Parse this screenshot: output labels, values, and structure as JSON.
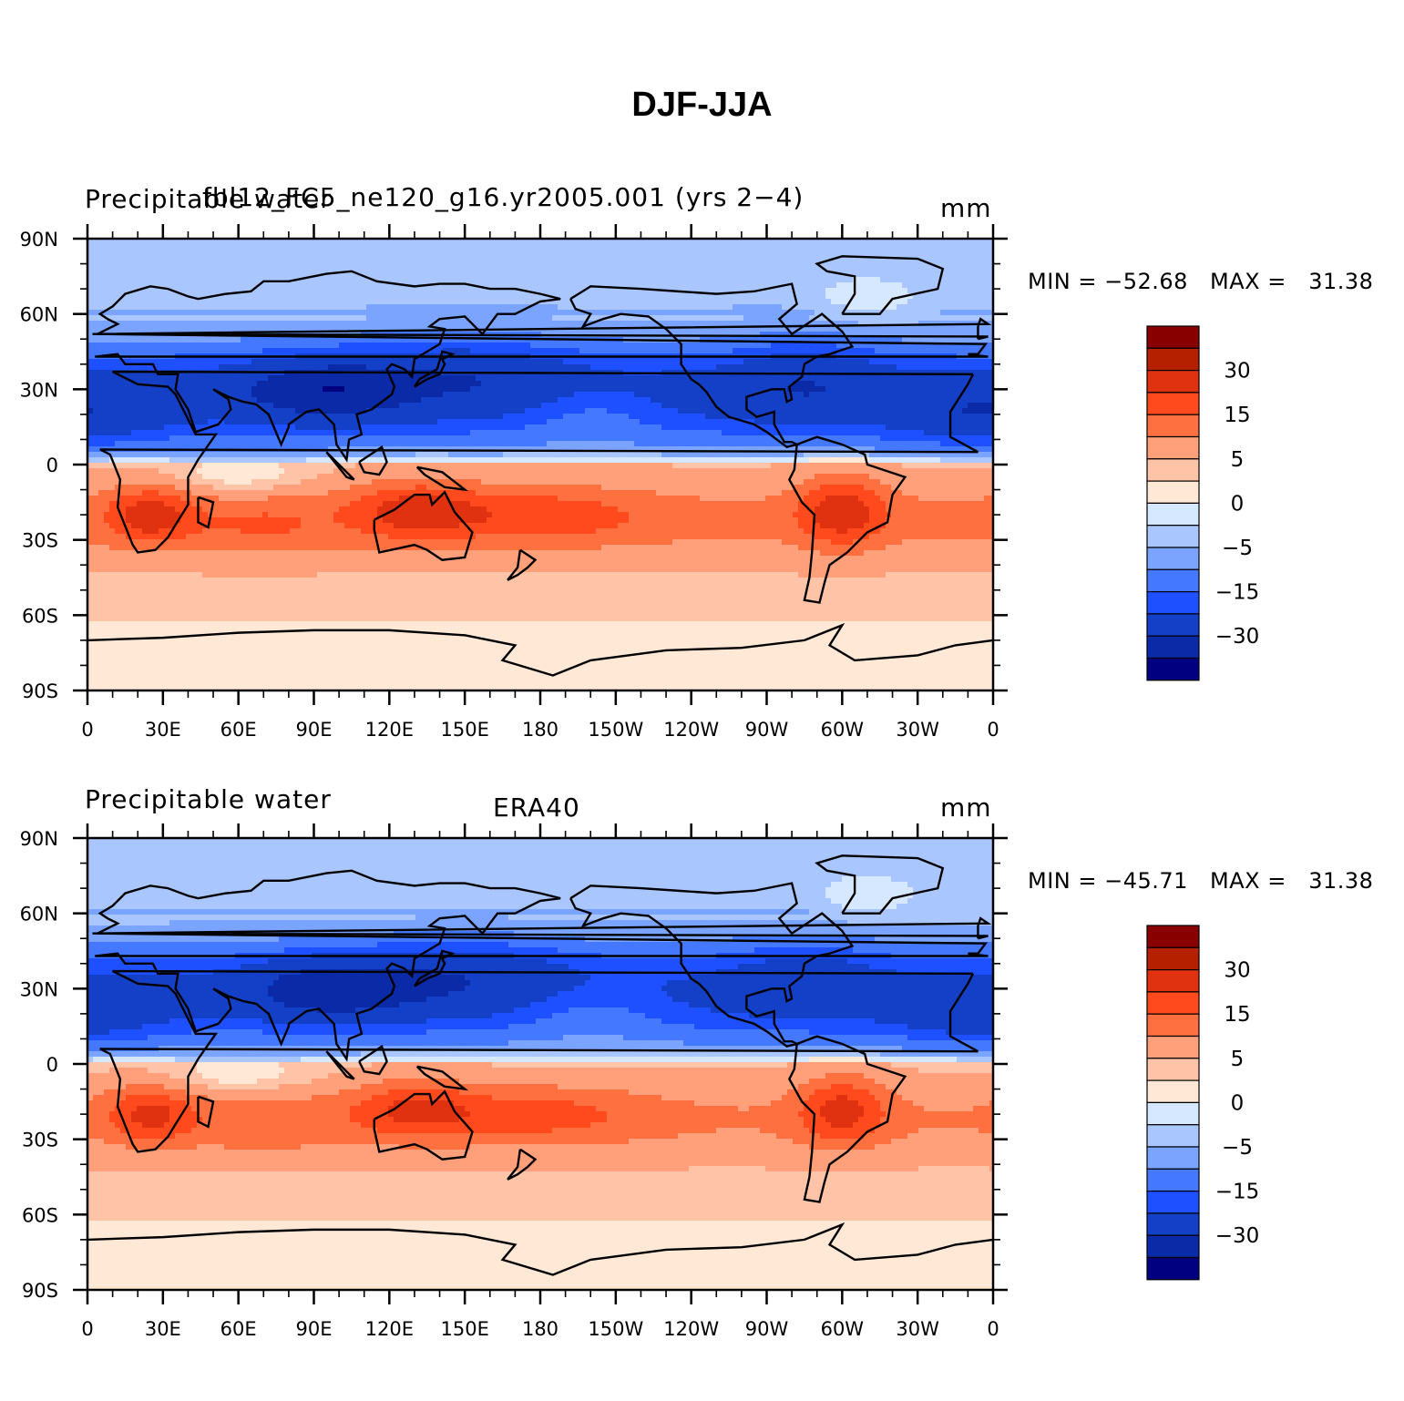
{
  "title": "DJF-JJA",
  "colors": [
    "#000080",
    "#0a2aa8",
    "#1440c8",
    "#1e50ff",
    "#4478ff",
    "#7aa4ff",
    "#aac6ff",
    "#d6e8ff",
    "#ffe8d6",
    "#ffc4a8",
    "#ffa07a",
    "#ff7040",
    "#ff4a1e",
    "#e03210",
    "#b42000",
    "#880000"
  ],
  "color_labels": [
    "−30",
    "−15",
    "−5",
    "0",
    "5",
    "15",
    "30"
  ],
  "lat_ticks": [
    "90N",
    "60N",
    "30N",
    "0",
    "30S",
    "60S",
    "90S"
  ],
  "lon_ticks": [
    "0",
    "30E",
    "60E",
    "90E",
    "120E",
    "150E",
    "180",
    "150W",
    "120W",
    "90W",
    "60W",
    "30W",
    "0"
  ],
  "panels": [
    {
      "left_title": "Precipitable water",
      "center_title": "fbl12_FC5_ne120_g16.yr2005.001 (yrs 2−4)",
      "right_title": "mm",
      "min_label": "MIN = −52.68",
      "max_label": "MAX =   31.38"
    },
    {
      "left_title": "Precipitable water",
      "center_title": "ERA40",
      "right_title": "mm",
      "min_label": "MIN = −45.71",
      "max_label": "MAX =   31.38"
    }
  ],
  "chart_data": [
    {
      "type": "heatmap",
      "title": "fbl12_FC5_ne120_g16.yr2005.001 (yrs 2−4)",
      "variable": "Precipitable water",
      "units": "mm",
      "x_range": [
        "0",
        "0"
      ],
      "y_range": [
        "90S",
        "90N"
      ],
      "contour_levels": [
        -40,
        -30,
        -20,
        -15,
        -10,
        -5,
        -2,
        0,
        2,
        5,
        10,
        15,
        20,
        30,
        40
      ],
      "min": -52.68,
      "max": 31.38
    },
    {
      "type": "heatmap",
      "title": "ERA40",
      "variable": "Precipitable water",
      "units": "mm",
      "x_range": [
        "0",
        "0"
      ],
      "y_range": [
        "90S",
        "90N"
      ],
      "contour_levels": [
        -40,
        -30,
        -20,
        -15,
        -10,
        -5,
        -2,
        0,
        2,
        5,
        10,
        15,
        20,
        30,
        40
      ],
      "min": -45.71,
      "max": 31.38
    }
  ]
}
